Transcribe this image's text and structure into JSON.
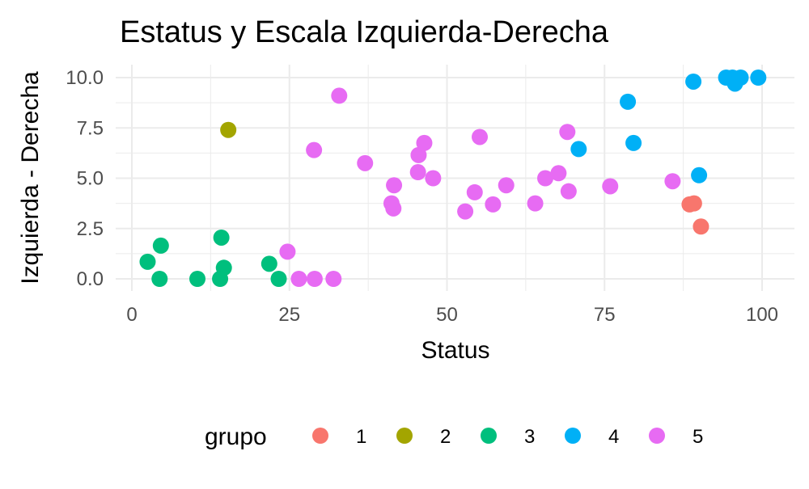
{
  "chart_data": {
    "type": "scatter",
    "title": "Estatus y Escala Izquierda-Derecha",
    "xlabel": "Status",
    "ylabel": "Izquierda - Derecha",
    "xlim": [
      0,
      100
    ],
    "ylim": [
      0,
      10
    ],
    "x_ticks": [
      0,
      25,
      50,
      75,
      100
    ],
    "x_tick_labels": [
      "0",
      "25",
      "50",
      "75",
      "100"
    ],
    "y_ticks": [
      0,
      2.5,
      5,
      7.5,
      10
    ],
    "y_tick_labels": [
      "0.0",
      "2.5",
      "5.0",
      "7.5",
      "10.0"
    ],
    "grid": true,
    "legend_placement": "bottom",
    "legend_title": "grupo",
    "series": [
      {
        "name": "1",
        "color": "#F8766D",
        "points": [
          [
            88.5,
            3.7
          ],
          [
            89.2,
            3.75
          ],
          [
            90.3,
            2.6
          ]
        ]
      },
      {
        "name": "2",
        "color": "#A3A500",
        "points": [
          [
            15.3,
            7.4
          ]
        ]
      },
      {
        "name": "3",
        "color": "#00BF7D",
        "points": [
          [
            2.5,
            0.85
          ],
          [
            4.6,
            1.65
          ],
          [
            4.4,
            0.0
          ],
          [
            10.4,
            0.0
          ],
          [
            14.2,
            2.05
          ],
          [
            14.6,
            0.55
          ],
          [
            14.0,
            0.0
          ],
          [
            21.8,
            0.75
          ],
          [
            23.3,
            0.0
          ]
        ]
      },
      {
        "name": "4",
        "color": "#00B0F6",
        "points": [
          [
            70.9,
            6.45
          ],
          [
            78.7,
            8.8
          ],
          [
            79.6,
            6.75
          ],
          [
            89.1,
            9.8
          ],
          [
            90.0,
            5.15
          ],
          [
            94.3,
            10.0
          ],
          [
            95.3,
            10.0
          ],
          [
            95.7,
            9.7
          ],
          [
            96.6,
            10.0
          ],
          [
            99.4,
            10.0
          ]
        ]
      },
      {
        "name": "5",
        "color": "#E76BF3",
        "points": [
          [
            24.7,
            1.35
          ],
          [
            26.5,
            0.0
          ],
          [
            28.9,
            6.4
          ],
          [
            29.0,
            0.0
          ],
          [
            32.0,
            0.0
          ],
          [
            32.9,
            9.1
          ],
          [
            37.0,
            5.75
          ],
          [
            41.2,
            3.75
          ],
          [
            41.5,
            3.5
          ],
          [
            41.6,
            4.65
          ],
          [
            45.4,
            5.3
          ],
          [
            45.5,
            6.15
          ],
          [
            46.4,
            6.75
          ],
          [
            47.8,
            5.0
          ],
          [
            52.9,
            3.35
          ],
          [
            54.4,
            4.3
          ],
          [
            55.2,
            7.05
          ],
          [
            57.3,
            3.7
          ],
          [
            59.4,
            4.65
          ],
          [
            64.0,
            3.75
          ],
          [
            65.6,
            5.0
          ],
          [
            67.7,
            5.25
          ],
          [
            69.1,
            7.3
          ],
          [
            69.3,
            4.35
          ],
          [
            75.9,
            4.6
          ],
          [
            85.8,
            4.85
          ]
        ]
      }
    ]
  }
}
